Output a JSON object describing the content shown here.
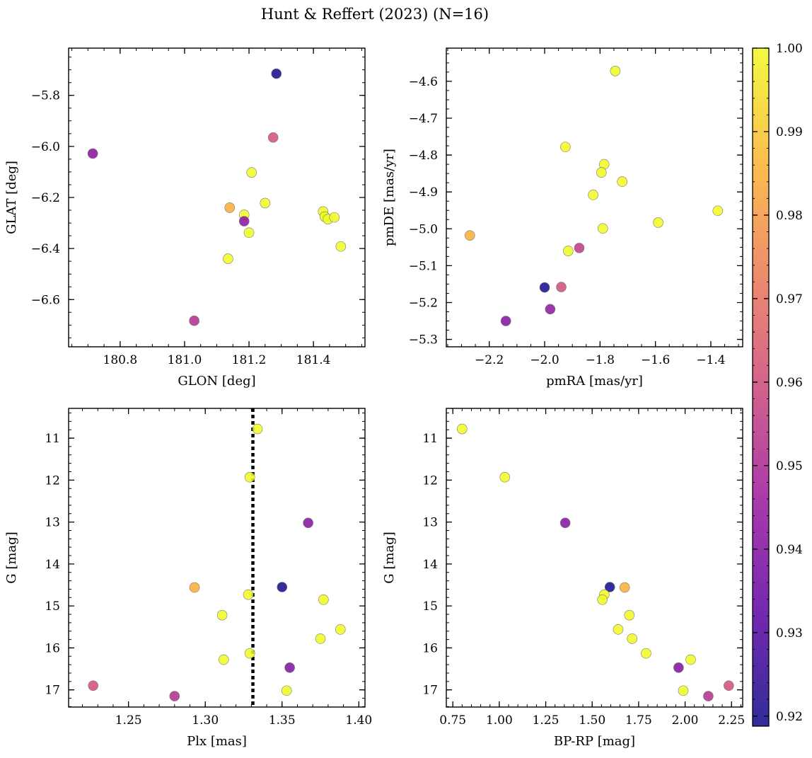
{
  "figure": {
    "title": "Hunt & Reffert (2023) (N=16)"
  },
  "colormap": {
    "name": "plasma",
    "stops": [
      "#0d0887",
      "#5b02a3",
      "#9a179b",
      "#cb4678",
      "#eb7852",
      "#fbb32f",
      "#f0f921"
    ],
    "range": [
      0.9188,
      1.0
    ],
    "ticks": [
      0.92,
      0.93,
      0.94,
      0.95,
      0.96,
      0.97,
      0.98,
      0.99,
      1.0
    ],
    "tick_labels": [
      "0.92",
      "0.93",
      "0.94",
      "0.95",
      "0.96",
      "0.97",
      "0.98",
      "0.99",
      "1.00"
    ]
  },
  "chart_data": [
    {
      "type": "scatter",
      "id": "glon-glat",
      "xlabel": "GLON [deg]",
      "ylabel": "GLAT [deg]",
      "xlim": [
        180.64,
        181.56
      ],
      "ylim": [
        -6.785,
        -5.615
      ],
      "y_inverted": false,
      "xticks": [
        180.8,
        181.0,
        181.2,
        181.4
      ],
      "xtick_labels": [
        "180.8",
        "181.0",
        "181.2",
        "181.4"
      ],
      "yticks": [
        -6.6,
        -6.4,
        -6.2,
        -6.0,
        -5.8
      ],
      "ytick_labels": [
        "−6.6",
        "−6.4",
        "−6.2",
        "−6.0",
        "−5.8"
      ],
      "x_minor_step": 0.05,
      "y_minor_step": 0.05,
      "points": [
        {
          "x": 181.285,
          "y": -5.715,
          "c": 0.9195
        },
        {
          "x": 180.715,
          "y": -6.028,
          "c": 0.941
        },
        {
          "x": 181.275,
          "y": -5.965,
          "c": 0.9615
        },
        {
          "x": 181.208,
          "y": -6.102,
          "c": 1.0
        },
        {
          "x": 181.25,
          "y": -6.222,
          "c": 1.0
        },
        {
          "x": 181.14,
          "y": -6.24,
          "c": 0.985
        },
        {
          "x": 181.185,
          "y": -6.268,
          "c": 1.0
        },
        {
          "x": 181.185,
          "y": -6.293,
          "c": 0.942
        },
        {
          "x": 181.2,
          "y": -6.338,
          "c": 1.0
        },
        {
          "x": 181.43,
          "y": -6.255,
          "c": 1.0
        },
        {
          "x": 181.435,
          "y": -6.275,
          "c": 1.0
        },
        {
          "x": 181.445,
          "y": -6.285,
          "c": 1.0
        },
        {
          "x": 181.465,
          "y": -6.278,
          "c": 1.0
        },
        {
          "x": 181.485,
          "y": -6.392,
          "c": 1.0
        },
        {
          "x": 181.135,
          "y": -6.44,
          "c": 1.0
        },
        {
          "x": 181.03,
          "y": -6.683,
          "c": 0.952
        }
      ]
    },
    {
      "type": "scatter",
      "id": "pm",
      "xlabel": "pmRA [mas/yr]",
      "ylabel": "pmDE [mas/yr]",
      "xlim": [
        -2.355,
        -1.285
      ],
      "ylim": [
        -5.32,
        -4.51
      ],
      "y_inverted": false,
      "xticks": [
        -2.2,
        -2.0,
        -1.8,
        -1.6,
        -1.4
      ],
      "xtick_labels": [
        "−2.2",
        "−2.0",
        "−1.8",
        "−1.6",
        "−1.4"
      ],
      "yticks": [
        -5.3,
        -5.2,
        -5.1,
        -5.0,
        -4.9,
        -4.8,
        -4.7,
        -4.6
      ],
      "ytick_labels": [
        "−5.3",
        "−5.2",
        "−5.1",
        "−5.0",
        "−4.9",
        "−4.8",
        "−4.7",
        "−4.6"
      ],
      "x_minor_step": 0.05,
      "y_minor_step": 0.025,
      "points": [
        {
          "x": -1.745,
          "y": -4.572,
          "c": 1.0
        },
        {
          "x": -1.925,
          "y": -4.778,
          "c": 1.0
        },
        {
          "x": -1.785,
          "y": -4.825,
          "c": 1.0
        },
        {
          "x": -1.795,
          "y": -4.847,
          "c": 1.0
        },
        {
          "x": -1.72,
          "y": -4.872,
          "c": 1.0
        },
        {
          "x": -1.825,
          "y": -4.908,
          "c": 1.0
        },
        {
          "x": -1.375,
          "y": -4.951,
          "c": 1.0
        },
        {
          "x": -1.59,
          "y": -4.983,
          "c": 1.0
        },
        {
          "x": -1.79,
          "y": -4.999,
          "c": 1.0
        },
        {
          "x": -2.27,
          "y": -5.018,
          "c": 0.985
        },
        {
          "x": -1.875,
          "y": -5.052,
          "c": 0.955
        },
        {
          "x": -1.915,
          "y": -5.06,
          "c": 1.0
        },
        {
          "x": -2.0,
          "y": -5.159,
          "c": 0.9195
        },
        {
          "x": -1.94,
          "y": -5.158,
          "c": 0.961
        },
        {
          "x": -1.98,
          "y": -5.218,
          "c": 0.943
        },
        {
          "x": -2.14,
          "y": -5.25,
          "c": 0.94
        }
      ]
    },
    {
      "type": "scatter",
      "id": "plx-g",
      "xlabel": "Plx [mas]",
      "ylabel": "G [mag]",
      "xlim": [
        1.211,
        1.404
      ],
      "ylim": [
        10.29,
        17.41
      ],
      "y_inverted": true,
      "xticks": [
        1.25,
        1.3,
        1.35,
        1.4
      ],
      "xtick_labels": [
        "1.25",
        "1.30",
        "1.35",
        "1.40"
      ],
      "yticks": [
        11,
        12,
        13,
        14,
        15,
        16,
        17
      ],
      "ytick_labels": [
        "11",
        "12",
        "13",
        "14",
        "15",
        "16",
        "17"
      ],
      "x_minor_step": 0.01,
      "y_minor_step": 0.2,
      "vline": {
        "x": 1.331,
        "style": "dotted",
        "color": "#000000"
      },
      "points": [
        {
          "x": 1.334,
          "y": 10.78,
          "c": 1.0
        },
        {
          "x": 1.329,
          "y": 11.93,
          "c": 1.0
        },
        {
          "x": 1.367,
          "y": 13.02,
          "c": 0.941
        },
        {
          "x": 1.293,
          "y": 14.56,
          "c": 0.985
        },
        {
          "x": 1.35,
          "y": 14.55,
          "c": 0.9195
        },
        {
          "x": 1.328,
          "y": 14.73,
          "c": 1.0
        },
        {
          "x": 1.377,
          "y": 14.85,
          "c": 1.0
        },
        {
          "x": 1.311,
          "y": 15.22,
          "c": 1.0
        },
        {
          "x": 1.388,
          "y": 15.56,
          "c": 1.0
        },
        {
          "x": 1.375,
          "y": 15.78,
          "c": 1.0
        },
        {
          "x": 1.329,
          "y": 16.13,
          "c": 1.0
        },
        {
          "x": 1.312,
          "y": 16.28,
          "c": 1.0
        },
        {
          "x": 1.355,
          "y": 16.47,
          "c": 0.94
        },
        {
          "x": 1.227,
          "y": 16.9,
          "c": 0.961
        },
        {
          "x": 1.353,
          "y": 17.02,
          "c": 1.0
        },
        {
          "x": 1.28,
          "y": 17.15,
          "c": 0.952
        }
      ]
    },
    {
      "type": "scatter",
      "id": "cmd",
      "xlabel": "BP-RP [mag]",
      "ylabel": "G [mag]",
      "xlim": [
        0.715,
        2.31
      ],
      "ylim": [
        10.29,
        17.41
      ],
      "y_inverted": true,
      "xticks": [
        0.75,
        1.0,
        1.25,
        1.5,
        1.75,
        2.0,
        2.25
      ],
      "xtick_labels": [
        "0.75",
        "1.00",
        "1.25",
        "1.50",
        "1.75",
        "2.00",
        "2.25"
      ],
      "yticks": [
        11,
        12,
        13,
        14,
        15,
        16,
        17
      ],
      "ytick_labels": [
        "11",
        "12",
        "13",
        "14",
        "15",
        "16",
        "17"
      ],
      "x_minor_step": 0.05,
      "y_minor_step": 0.2,
      "points": [
        {
          "x": 0.8,
          "y": 10.78,
          "c": 1.0
        },
        {
          "x": 1.03,
          "y": 11.93,
          "c": 1.0
        },
        {
          "x": 1.355,
          "y": 13.02,
          "c": 0.941
        },
        {
          "x": 1.595,
          "y": 14.55,
          "c": 0.9195
        },
        {
          "x": 1.675,
          "y": 14.56,
          "c": 0.985
        },
        {
          "x": 1.565,
          "y": 14.73,
          "c": 1.0
        },
        {
          "x": 1.555,
          "y": 14.85,
          "c": 1.0
        },
        {
          "x": 1.7,
          "y": 15.22,
          "c": 1.0
        },
        {
          "x": 1.64,
          "y": 15.56,
          "c": 1.0
        },
        {
          "x": 1.715,
          "y": 15.78,
          "c": 1.0
        },
        {
          "x": 1.79,
          "y": 16.13,
          "c": 1.0
        },
        {
          "x": 2.03,
          "y": 16.28,
          "c": 1.0
        },
        {
          "x": 1.965,
          "y": 16.47,
          "c": 0.94
        },
        {
          "x": 2.235,
          "y": 16.9,
          "c": 0.961
        },
        {
          "x": 1.99,
          "y": 17.02,
          "c": 1.0
        },
        {
          "x": 2.125,
          "y": 17.15,
          "c": 0.952
        }
      ]
    }
  ]
}
